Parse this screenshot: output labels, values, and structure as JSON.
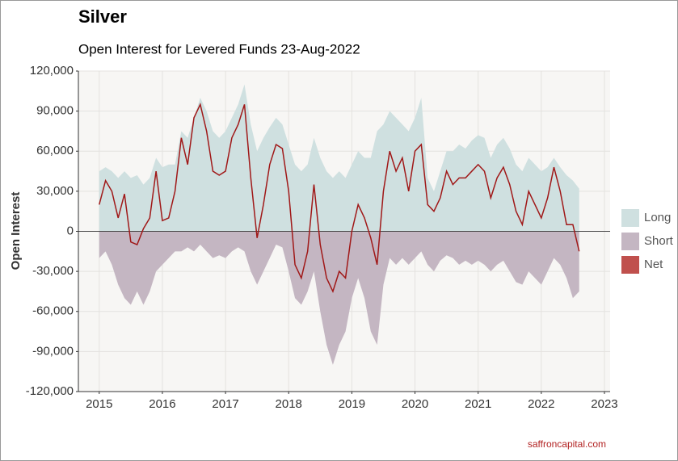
{
  "chart_data": {
    "type": "area_line",
    "title": "Silver",
    "subtitle": "Open Interest for Levered Funds 23-Aug-2022",
    "y_label": "Open Interest",
    "source": "saffroncapital.com",
    "x": [
      2015.0,
      2015.1,
      2015.2,
      2015.3,
      2015.4,
      2015.5,
      2015.6,
      2015.7,
      2015.8,
      2015.9,
      2016.0,
      2016.1,
      2016.2,
      2016.3,
      2016.4,
      2016.5,
      2016.6,
      2016.7,
      2016.8,
      2016.9,
      2017.0,
      2017.1,
      2017.2,
      2017.3,
      2017.4,
      2017.5,
      2017.6,
      2017.7,
      2017.8,
      2017.9,
      2018.0,
      2018.1,
      2018.2,
      2018.3,
      2018.4,
      2018.5,
      2018.6,
      2018.7,
      2018.8,
      2018.9,
      2019.0,
      2019.1,
      2019.2,
      2019.3,
      2019.4,
      2019.5,
      2019.6,
      2019.7,
      2019.8,
      2019.9,
      2020.0,
      2020.1,
      2020.2,
      2020.3,
      2020.4,
      2020.5,
      2020.6,
      2020.7,
      2020.8,
      2020.9,
      2021.0,
      2021.1,
      2021.2,
      2021.3,
      2021.4,
      2021.5,
      2021.6,
      2021.7,
      2021.8,
      2021.9,
      2022.0,
      2022.1,
      2022.2,
      2022.3,
      2022.4,
      2022.5,
      2022.6
    ],
    "series": [
      {
        "name": "Long",
        "color": "#cfe0e0",
        "values": [
          45000,
          48000,
          45000,
          40000,
          45000,
          40000,
          42000,
          35000,
          40000,
          55000,
          48000,
          50000,
          50000,
          75000,
          70000,
          85000,
          100000,
          90000,
          75000,
          70000,
          75000,
          85000,
          95000,
          110000,
          80000,
          60000,
          70000,
          78000,
          85000,
          80000,
          65000,
          50000,
          45000,
          50000,
          70000,
          55000,
          45000,
          40000,
          45000,
          40000,
          50000,
          60000,
          55000,
          55000,
          75000,
          80000,
          90000,
          85000,
          80000,
          75000,
          85000,
          100000,
          40000,
          30000,
          45000,
          60000,
          60000,
          65000,
          62000,
          68000,
          72000,
          70000,
          55000,
          65000,
          70000,
          62000,
          50000,
          45000,
          55000,
          50000,
          45000,
          48000,
          55000,
          48000,
          42000,
          38000,
          32000
        ]
      },
      {
        "name": "Short",
        "color": "#c4b6c2",
        "values": [
          -20000,
          -15000,
          -25000,
          -40000,
          -50000,
          -55000,
          -45000,
          -55000,
          -45000,
          -30000,
          -25000,
          -20000,
          -15000,
          -15000,
          -12000,
          -15000,
          -10000,
          -15000,
          -20000,
          -18000,
          -20000,
          -15000,
          -12000,
          -15000,
          -30000,
          -40000,
          -30000,
          -20000,
          -10000,
          -12000,
          -30000,
          -50000,
          -55000,
          -45000,
          -30000,
          -60000,
          -85000,
          -100000,
          -85000,
          -75000,
          -50000,
          -35000,
          -50000,
          -75000,
          -85000,
          -40000,
          -20000,
          -25000,
          -20000,
          -25000,
          -20000,
          -15000,
          -25000,
          -30000,
          -22000,
          -18000,
          -20000,
          -25000,
          -22000,
          -25000,
          -22000,
          -25000,
          -30000,
          -25000,
          -22000,
          -30000,
          -38000,
          -40000,
          -30000,
          -35000,
          -40000,
          -30000,
          -20000,
          -25000,
          -35000,
          -50000,
          -45000
        ]
      },
      {
        "name": "Net",
        "color": "#a01818",
        "legend_color": "#c0504d",
        "values": [
          20000,
          38000,
          30000,
          10000,
          28000,
          -8000,
          -10000,
          2000,
          10000,
          45000,
          8000,
          10000,
          30000,
          70000,
          50000,
          85000,
          95000,
          75000,
          45000,
          42000,
          45000,
          70000,
          80000,
          95000,
          40000,
          -5000,
          20000,
          50000,
          65000,
          62000,
          30000,
          -25000,
          -35000,
          -15000,
          35000,
          -10000,
          -35000,
          -45000,
          -30000,
          -35000,
          0,
          20000,
          10000,
          -5000,
          -25000,
          30000,
          60000,
          45000,
          55000,
          30000,
          60000,
          65000,
          20000,
          15000,
          25000,
          45000,
          35000,
          40000,
          40000,
          45000,
          50000,
          45000,
          25000,
          40000,
          48000,
          35000,
          15000,
          5000,
          30000,
          20000,
          10000,
          25000,
          48000,
          30000,
          5000,
          5000,
          -15000
        ]
      }
    ],
    "xlim": [
      2014.67,
      2023.09
    ],
    "xticks": [
      2015,
      2016,
      2017,
      2018,
      2019,
      2020,
      2021,
      2022,
      2023
    ],
    "ylim": [
      -120000,
      120000
    ],
    "yticks": [
      {
        "value": -120000,
        "label": "-120,000"
      },
      {
        "value": -90000,
        "label": "-90,000"
      },
      {
        "value": -60000,
        "label": "-60,000"
      },
      {
        "value": -30000,
        "label": "-30,000"
      },
      0,
      {
        "value": 30000,
        "label": "30,000"
      },
      {
        "value": 60000,
        "label": "60,000"
      },
      {
        "value": 90000,
        "label": "90,000"
      },
      {
        "value": 120000,
        "label": "120,000"
      }
    ],
    "grid": true
  }
}
